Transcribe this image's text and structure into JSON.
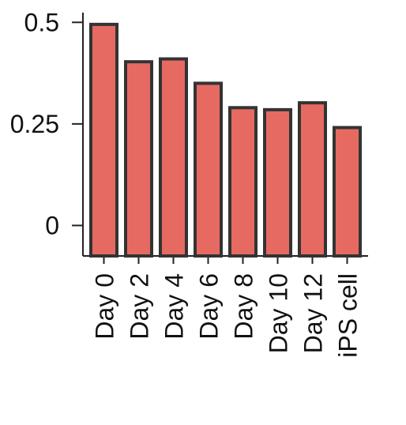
{
  "chart_data": {
    "type": "bar",
    "categories": [
      "Day 0",
      "Day 2",
      "Day 4",
      "Day 6",
      "Day 8",
      "Day 10",
      "Day 12",
      "iPS cell"
    ],
    "values": [
      0.495,
      0.403,
      0.41,
      0.35,
      0.29,
      0.285,
      0.302,
      0.241
    ],
    "y_ticks": [
      0,
      0.25,
      0.5
    ],
    "y_tick_labels": [
      "0",
      "0.25",
      "0.5"
    ],
    "ylim": [
      -0.075,
      0.52
    ],
    "title": "",
    "xlabel": "",
    "ylabel": "",
    "grid": false,
    "legend": "none",
    "colors": {
      "bar_fill": "#E66A62",
      "bar_stroke": "#333333",
      "axis": "#222222",
      "text": "#111111"
    }
  }
}
